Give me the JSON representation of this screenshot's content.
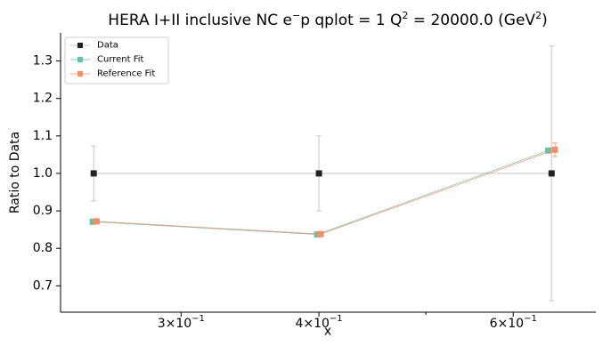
{
  "chart_data": {
    "type": "line",
    "title_main": "HERA I+II inclusive NC e",
    "title_sup1": "−",
    "title_mid": "p qplot = 1 Q",
    "title_sup2": "2",
    "title_end": " = 20000.0 (GeV",
    "title_sup3": "2",
    "title_close": ")",
    "xlabel": "x",
    "ylabel": "Ratio to Data",
    "xscale": "log",
    "xlim": [
      0.2333,
      0.7129
    ],
    "ylim": [
      0.6296,
      1.3749
    ],
    "grid": false,
    "legend_position": "top-left",
    "y_ticks": [
      {
        "value": 0.7,
        "label": "0.7"
      },
      {
        "value": 0.8,
        "label": "0.8"
      },
      {
        "value": 0.9,
        "label": "0.9"
      },
      {
        "value": 1.0,
        "label": "1.0"
      },
      {
        "value": 1.1,
        "label": "1.1"
      },
      {
        "value": 1.2,
        "label": "1.2"
      },
      {
        "value": 1.3,
        "label": "1.3"
      }
    ],
    "x_major_ticks": [
      {
        "value": 0.3,
        "mantissa": "3",
        "exponent": "−1"
      },
      {
        "value": 0.4,
        "mantissa": "4",
        "exponent": "−1"
      },
      {
        "value": 0.6,
        "mantissa": "6",
        "exponent": "−1"
      }
    ],
    "x_minor_ticks": [
      0.5
    ],
    "times_sign": "×",
    "ten": "10",
    "series": [
      {
        "name": "Data",
        "color": "#222222",
        "line_color": "#bbbbbb",
        "points": [
          {
            "x": 0.25,
            "y": 1.0,
            "err": 0.073
          },
          {
            "x": 0.4,
            "y": 1.0,
            "err": 0.1
          },
          {
            "x": 0.65,
            "y": 1.0,
            "err": 0.34
          }
        ]
      },
      {
        "name": "Current Fit",
        "color": "#66c2a5",
        "line_color": "#66c2a5",
        "points": [
          {
            "x": 0.2495,
            "y": 0.871,
            "err": 0.004
          },
          {
            "x": 0.3985,
            "y": 0.837,
            "err": 0.004
          },
          {
            "x": 0.6455,
            "y": 1.061,
            "err": 0.004
          }
        ]
      },
      {
        "name": "Reference Fit",
        "color": "#fc8d62",
        "line_color": "#fc8d62",
        "points": [
          {
            "x": 0.2515,
            "y": 0.872,
            "err": 0.004
          },
          {
            "x": 0.4015,
            "y": 0.838,
            "err": 0.004
          },
          {
            "x": 0.6545,
            "y": 1.063,
            "err": 0.018
          }
        ]
      }
    ]
  }
}
